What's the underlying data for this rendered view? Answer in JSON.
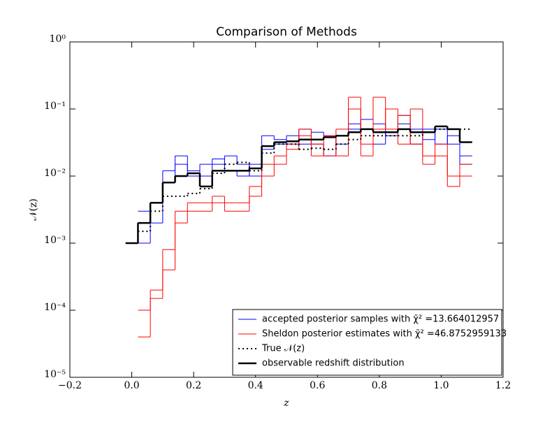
{
  "chart_data": {
    "type": "step",
    "title": "Comparison of Methods",
    "x_label": "z",
    "y_label": "𝒩(z)",
    "log_y": true,
    "xlim": [
      -0.2,
      1.2
    ],
    "ylim": [
      1e-05,
      1
    ],
    "xticks": [
      {
        "value": -0.2,
        "label": "−0.2"
      },
      {
        "value": 0,
        "label": "0.0"
      },
      0.2,
      0.4,
      0.6,
      0.8,
      {
        "value": 1,
        "label": "1.0"
      },
      1.2
    ],
    "yticks": [
      {
        "value": 1e-05,
        "label": "10⁻⁵"
      },
      {
        "value": 0.0001,
        "label": "10⁻⁴"
      },
      {
        "value": 0.001,
        "label": "10⁻³"
      },
      {
        "value": 0.01,
        "label": "10⁻²"
      },
      {
        "value": 0.1,
        "label": "10⁻¹"
      },
      {
        "value": 1,
        "label": "10⁰"
      }
    ],
    "legend": "lower right",
    "bins": [
      -0.02,
      0.02,
      0.06,
      0.1,
      0.14,
      0.18,
      0.22,
      0.26,
      0.3,
      0.34,
      0.38,
      0.42,
      0.46,
      0.5,
      0.54,
      0.58,
      0.62,
      0.66,
      0.7,
      0.74,
      0.78,
      0.82,
      0.86,
      0.9,
      0.94,
      0.98,
      1.02,
      1.06,
      1.1
    ],
    "series": [
      {
        "name": "accepted posterior samples with χ̄² =13.664012957",
        "color": "#0000ff",
        "dash": "solid",
        "width": 1,
        "samples": [
          [
            null,
            0.003,
            0.002,
            0.012,
            0.02,
            0.01,
            0.015,
            0.018,
            0.012,
            0.01,
            0.015,
            0.04,
            0.035,
            0.03,
            0.05,
            0.03,
            0.02,
            0.04,
            0.05,
            0.07,
            0.03,
            0.045,
            0.06,
            0.05,
            0.035,
            0.05,
            0.03,
            0.02
          ],
          [
            null,
            0.001,
            0.004,
            0.008,
            0.015,
            0.012,
            0.01,
            0.015,
            0.02,
            0.015,
            0.01,
            0.025,
            0.03,
            0.04,
            0.03,
            0.045,
            0.04,
            0.03,
            0.06,
            0.05,
            0.06,
            0.04,
            0.08,
            0.03,
            0.05,
            0.03,
            0.04,
            0.015
          ]
        ]
      },
      {
        "name": "Sheldon posterior estimates with χ̄² =46.8752959133",
        "color": "#ff0000",
        "dash": "solid",
        "width": 1,
        "samples": [
          [
            null,
            0.0001,
            0.0002,
            0.0008,
            0.003,
            0.004,
            0.004,
            0.005,
            0.004,
            0.004,
            0.007,
            0.015,
            0.02,
            0.03,
            0.04,
            0.02,
            0.04,
            0.02,
            0.1,
            0.03,
            0.15,
            0.05,
            0.08,
            0.03,
            0.02,
            0.02,
            0.01,
            0.015
          ],
          [
            null,
            4e-05,
            0.00015,
            0.0004,
            0.002,
            0.003,
            0.003,
            0.004,
            0.003,
            0.003,
            0.005,
            0.01,
            0.015,
            0.025,
            0.05,
            0.03,
            0.02,
            0.05,
            0.15,
            0.02,
            0.05,
            0.1,
            0.03,
            0.1,
            0.015,
            0.03,
            0.007,
            0.01
          ]
        ]
      },
      {
        "name": "True 𝒩(z)",
        "color": "#000000",
        "dash": "dotted",
        "width": 2,
        "samples": [
          [
            null,
            0.0015,
            0.003,
            0.005,
            0.005,
            0.0055,
            0.0065,
            0.011,
            0.015,
            0.016,
            0.012,
            0.022,
            0.03,
            0.03,
            0.025,
            0.026,
            0.025,
            0.03,
            0.035,
            0.04,
            0.04,
            0.04,
            0.04,
            0.04,
            0.045,
            0.05,
            0.05,
            0.05
          ]
        ]
      },
      {
        "name": "observable redshift distribution",
        "color": "#000000",
        "dash": "solid",
        "width": 2.5,
        "samples": [
          [
            0.001,
            0.002,
            0.004,
            0.008,
            0.01,
            0.011,
            0.007,
            0.012,
            0.012,
            0.012,
            0.013,
            0.028,
            0.032,
            0.033,
            0.035,
            0.035,
            0.038,
            0.04,
            0.045,
            0.05,
            0.045,
            0.045,
            0.05,
            0.045,
            0.045,
            0.055,
            0.05,
            0.032
          ]
        ]
      }
    ]
  }
}
